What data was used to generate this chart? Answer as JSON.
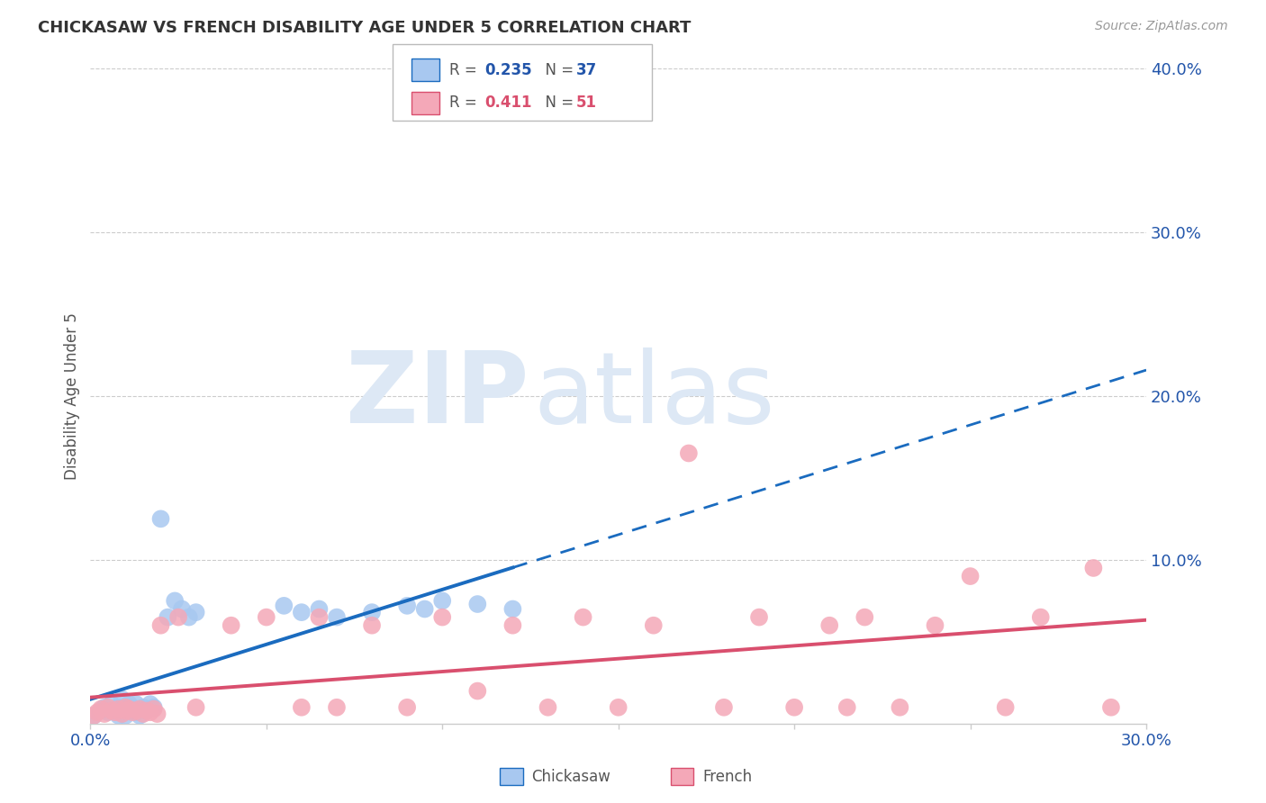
{
  "title": "CHICKASAW VS FRENCH DISABILITY AGE UNDER 5 CORRELATION CHART",
  "source": "Source: ZipAtlas.com",
  "ylabel": "Disability Age Under 5",
  "xlim": [
    0.0,
    0.3
  ],
  "ylim": [
    0.0,
    0.4
  ],
  "chickasaw_color": "#a8c8f0",
  "french_color": "#f4a8b8",
  "chickasaw_line_color": "#1a6bbf",
  "french_line_color": "#d94f6e",
  "R_chickasaw": 0.235,
  "N_chickasaw": 37,
  "R_french": 0.411,
  "N_french": 51,
  "watermark_zip": "ZIP",
  "watermark_atlas": "atlas",
  "watermark_color": "#dde8f5",
  "background_color": "#ffffff",
  "grid_color": "#cccccc",
  "chickasaw_x": [
    0.001,
    0.003,
    0.004,
    0.005,
    0.006,
    0.007,
    0.008,
    0.008,
    0.009,
    0.01,
    0.01,
    0.011,
    0.011,
    0.012,
    0.013,
    0.013,
    0.014,
    0.015,
    0.016,
    0.017,
    0.018,
    0.02,
    0.022,
    0.024,
    0.026,
    0.028,
    0.03,
    0.055,
    0.06,
    0.065,
    0.07,
    0.08,
    0.09,
    0.095,
    0.1,
    0.11,
    0.12
  ],
  "chickasaw_y": [
    0.005,
    0.008,
    0.01,
    0.007,
    0.012,
    0.008,
    0.01,
    0.005,
    0.015,
    0.01,
    0.005,
    0.012,
    0.008,
    0.01,
    0.007,
    0.012,
    0.005,
    0.01,
    0.008,
    0.012,
    0.01,
    0.125,
    0.065,
    0.075,
    0.07,
    0.065,
    0.068,
    0.072,
    0.068,
    0.07,
    0.065,
    0.068,
    0.072,
    0.07,
    0.075,
    0.073,
    0.07
  ],
  "french_x": [
    0.001,
    0.002,
    0.003,
    0.004,
    0.005,
    0.006,
    0.007,
    0.008,
    0.009,
    0.01,
    0.01,
    0.011,
    0.012,
    0.013,
    0.014,
    0.015,
    0.016,
    0.017,
    0.018,
    0.019,
    0.02,
    0.025,
    0.03,
    0.04,
    0.05,
    0.06,
    0.065,
    0.07,
    0.08,
    0.09,
    0.1,
    0.11,
    0.12,
    0.13,
    0.14,
    0.15,
    0.16,
    0.17,
    0.18,
    0.19,
    0.2,
    0.21,
    0.215,
    0.22,
    0.23,
    0.24,
    0.25,
    0.26,
    0.27,
    0.285,
    0.29
  ],
  "french_y": [
    0.005,
    0.007,
    0.009,
    0.006,
    0.01,
    0.008,
    0.007,
    0.009,
    0.006,
    0.01,
    0.008,
    0.009,
    0.007,
    0.008,
    0.009,
    0.006,
    0.008,
    0.007,
    0.009,
    0.006,
    0.06,
    0.065,
    0.01,
    0.06,
    0.065,
    0.01,
    0.065,
    0.01,
    0.06,
    0.01,
    0.065,
    0.02,
    0.06,
    0.01,
    0.065,
    0.01,
    0.06,
    0.165,
    0.01,
    0.065,
    0.01,
    0.06,
    0.01,
    0.065,
    0.01,
    0.06,
    0.09,
    0.01,
    0.065,
    0.095,
    0.01
  ]
}
